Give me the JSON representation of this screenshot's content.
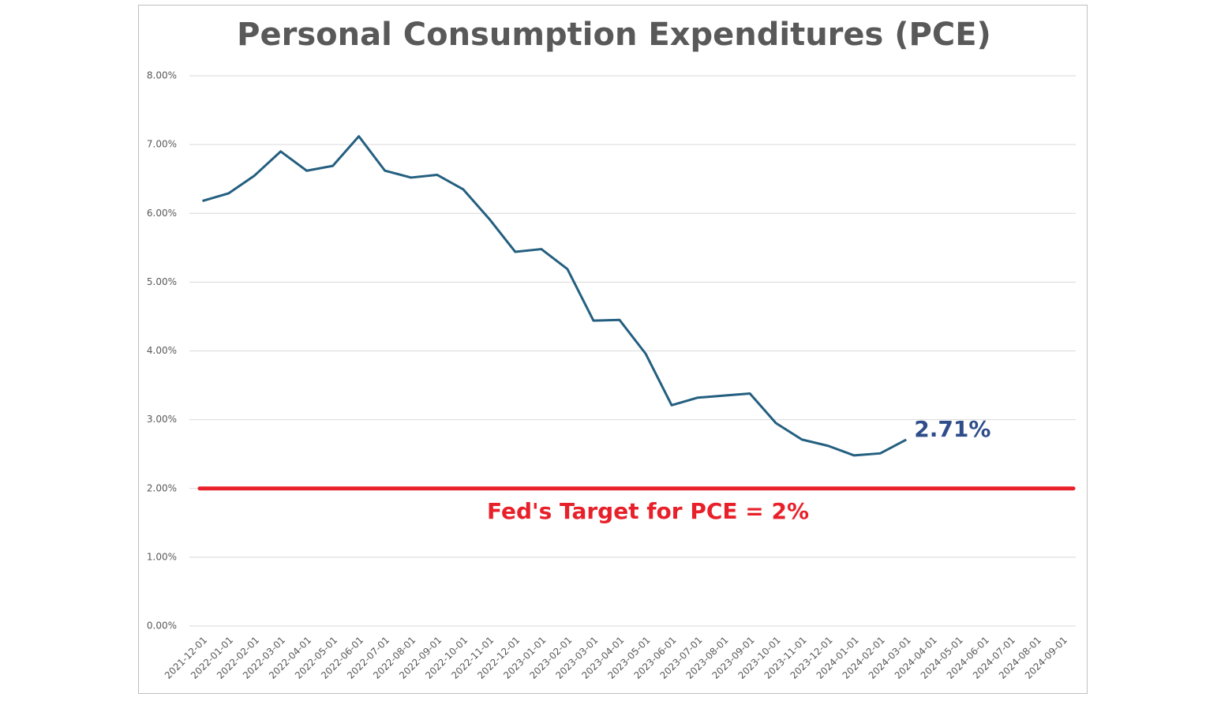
{
  "chart_data": {
    "type": "line",
    "title": "Personal Consumption Expenditures (PCE)",
    "categories": [
      "2021-12-01",
      "2022-01-01",
      "2022-02-01",
      "2022-03-01",
      "2022-04-01",
      "2022-05-01",
      "2022-06-01",
      "2022-07-01",
      "2022-08-01",
      "2022-09-01",
      "2022-10-01",
      "2022-11-01",
      "2022-12-01",
      "2023-01-01",
      "2023-02-01",
      "2023-03-01",
      "2023-04-01",
      "2023-05-01",
      "2023-06-01",
      "2023-07-01",
      "2023-08-01",
      "2023-09-01",
      "2023-10-01",
      "2023-11-01",
      "2023-12-01",
      "2024-01-01",
      "2024-02-01",
      "2024-03-01",
      "2024-04-01",
      "2024-05-01",
      "2024-06-01",
      "2024-07-01",
      "2024-08-01",
      "2024-09-01"
    ],
    "series": [
      {
        "name": "PCE",
        "color": "#245f80",
        "values": [
          6.18,
          6.29,
          6.55,
          6.9,
          6.62,
          6.69,
          7.12,
          6.62,
          6.52,
          6.56,
          6.35,
          5.92,
          5.44,
          5.48,
          5.19,
          4.44,
          4.45,
          3.96,
          3.21,
          3.32,
          3.35,
          3.38,
          2.95,
          2.71,
          2.62,
          2.48,
          2.51,
          2.71,
          null,
          null,
          null,
          null,
          null,
          null
        ]
      }
    ],
    "last_value_label": {
      "text": "2.71%",
      "color": "#2e4d8a"
    },
    "target_line": {
      "value": 2,
      "label": "Fed's Target for PCE = 2%",
      "color": "#e8202a"
    },
    "ylim": [
      0,
      8
    ],
    "yticks": [
      {
        "value": 0,
        "label": "0.00%"
      },
      {
        "value": 1,
        "label": "1.00%"
      },
      {
        "value": 2,
        "label": "2.00%"
      },
      {
        "value": 3,
        "label": "3.00%"
      },
      {
        "value": 4,
        "label": "4.00%"
      },
      {
        "value": 5,
        "label": "5.00%"
      },
      {
        "value": 6,
        "label": "6.00%"
      },
      {
        "value": 7,
        "label": "7.00%"
      },
      {
        "value": 8,
        "label": "8.00%"
      }
    ],
    "grid": true
  }
}
